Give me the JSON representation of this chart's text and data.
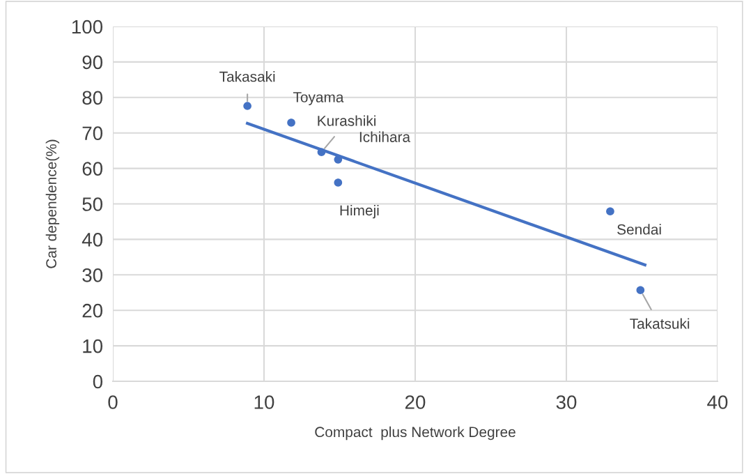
{
  "chart_data": {
    "type": "scatter",
    "xlabel": "Compact  plus Network Degree",
    "ylabel": "Car dependence(%)",
    "xlim": [
      0,
      40
    ],
    "xticks": [
      0,
      10,
      20,
      30,
      40
    ],
    "ylim": [
      0,
      100
    ],
    "yticks": [
      0,
      10,
      20,
      30,
      40,
      50,
      60,
      70,
      80,
      90,
      100
    ],
    "grid": true,
    "series": [
      {
        "marker": "circle",
        "color": "#4472c4",
        "x": [
          8.9,
          11.8,
          13.8,
          14.9,
          14.9,
          32.9,
          34.9
        ],
        "values": [
          77.6,
          72.9,
          64.6,
          62.5,
          56.0,
          47.9,
          25.7
        ]
      },
      {
        "type": "line",
        "marker": "none",
        "color": "#4472c4",
        "x": [
          8.9,
          35.2
        ],
        "values": [
          72.7,
          32.8
        ]
      }
    ],
    "annotations": [
      {
        "text": "Takasaki",
        "x": 8.9,
        "y": 77.6
      },
      {
        "text": "Toyama",
        "x": 11.8,
        "y": 72.9
      },
      {
        "text": "Kurashiki",
        "x": 13.8,
        "y": 64.6
      },
      {
        "text": "Ichihara",
        "x": 14.9,
        "y": 62.5
      },
      {
        "text": "Himeji",
        "x": 14.9,
        "y": 56.0
      },
      {
        "text": "Sendai",
        "x": 32.9,
        "y": 47.9
      },
      {
        "text": "Takatsuki",
        "x": 34.9,
        "y": 25.7
      }
    ]
  }
}
